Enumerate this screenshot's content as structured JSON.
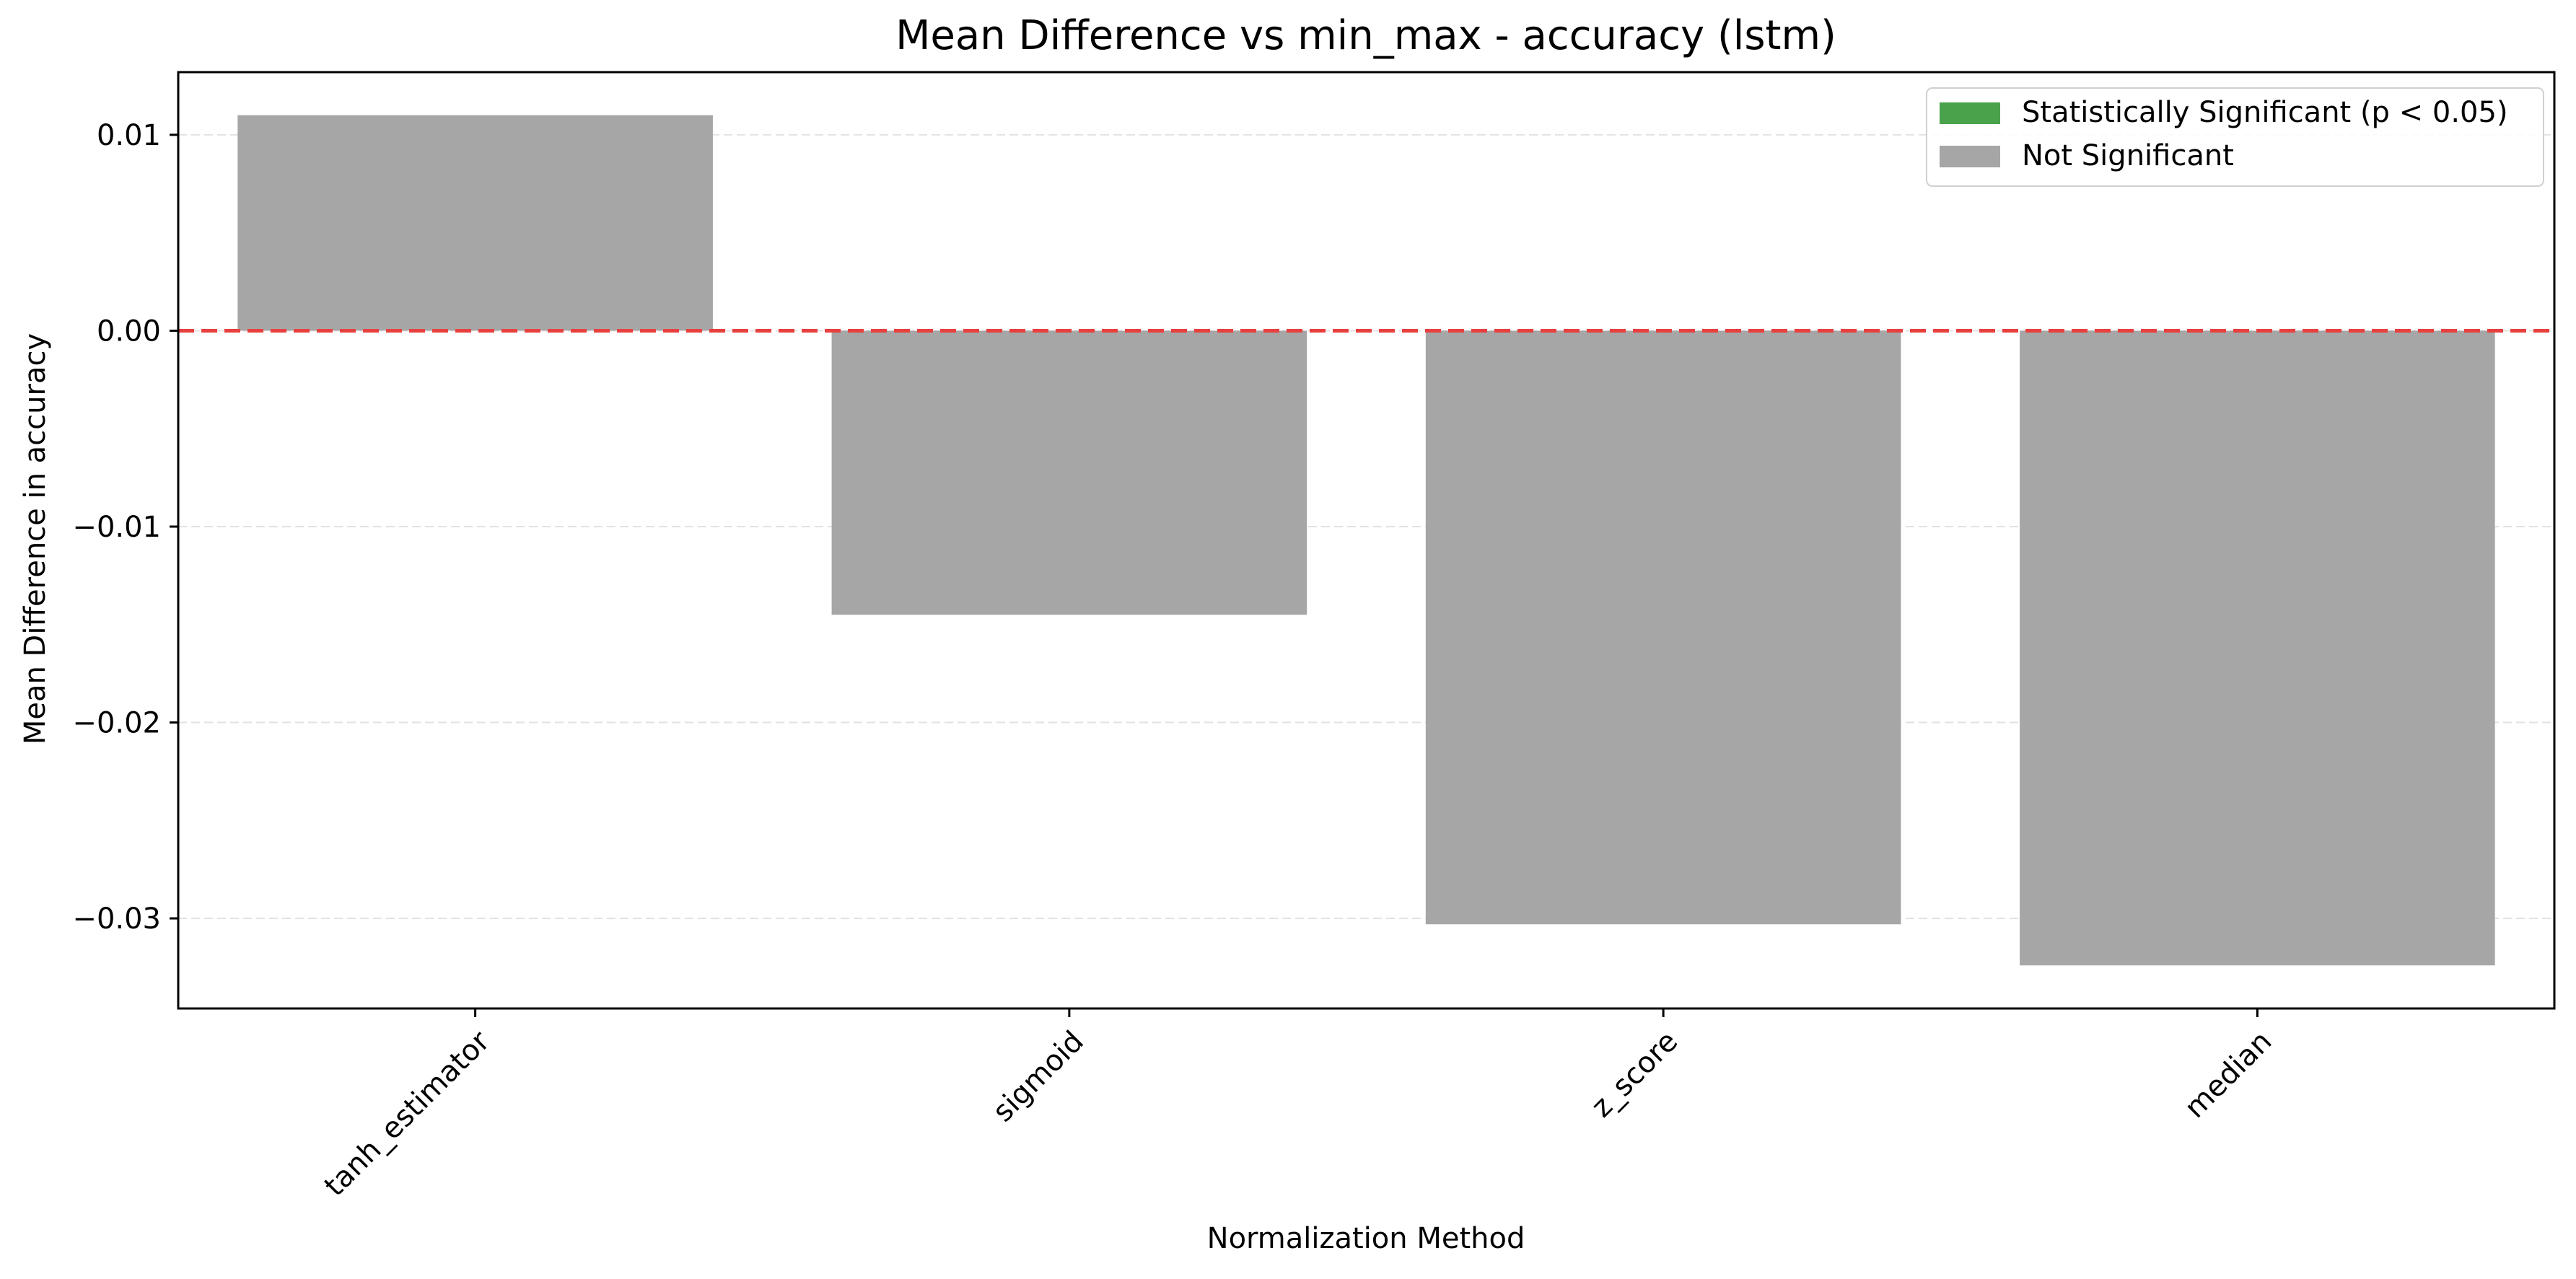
{
  "chart_data": {
    "type": "bar",
    "title": "Mean Difference vs min_max - accuracy (lstm)",
    "xlabel": "Normalization Method",
    "ylabel": "Mean Difference in accuracy",
    "categories": [
      "tanh_estimator",
      "sigmoid",
      "z_score",
      "median"
    ],
    "values": [
      0.011,
      -0.0145,
      -0.0303,
      -0.0324
    ],
    "significant": [
      false,
      false,
      false,
      false
    ],
    "ylim": [
      -0.0346,
      0.0132
    ],
    "yticks": [
      0.01,
      0.0,
      -0.01,
      -0.02,
      -0.03
    ],
    "ytick_labels": [
      "0.01",
      "0.00",
      "−0.01",
      "−0.02",
      "−0.03"
    ],
    "reference_line": {
      "y": 0.0,
      "style": "dashed",
      "color": "#e8403f"
    },
    "grid": {
      "y": true,
      "x": false,
      "style": "dashed"
    },
    "legend": {
      "position": "top-right",
      "entries": [
        {
          "label": "Statistically Significant (p < 0.05)",
          "color": "#4aa34a"
        },
        {
          "label": "Not Significant",
          "color": "#a6a6a6"
        }
      ]
    },
    "colors": {
      "significant": "#4aa34a",
      "not_significant": "#a6a6a6",
      "gridline": "#e2e2e2",
      "axis": "#000000"
    }
  }
}
